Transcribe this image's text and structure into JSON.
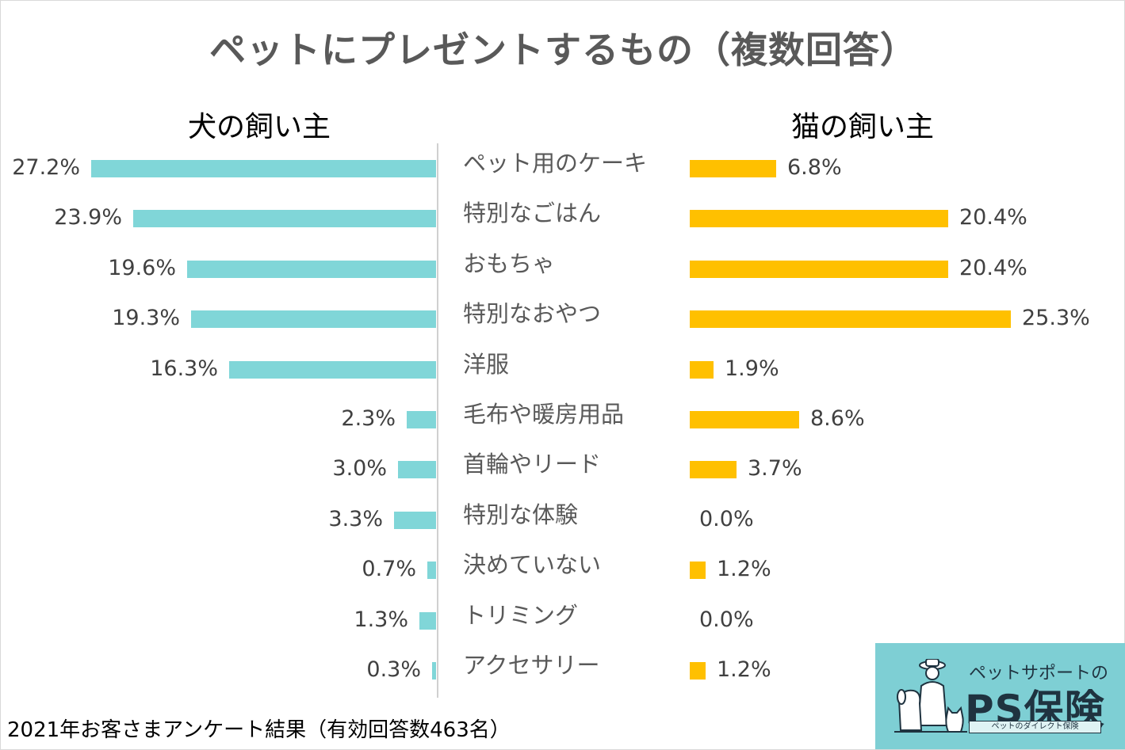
{
  "title": "ペットにプレゼントするもの（複数回答）",
  "footer": "2021年お客さまアンケート結果（有効回答数463名）",
  "logo": {
    "sub": "ペットサポートの",
    "brand": "PS保険",
    "tagline": "ペットのダイレクト保険",
    "icon": "pet-owner-illustration"
  },
  "colors": {
    "dog": "#80d6d8",
    "cat": "#ffc000",
    "logo_bg": "#7ecfd4"
  },
  "chart_data": {
    "type": "bar",
    "orientation": "horizontal-butterfly",
    "title": "ペットにプレゼントするもの（複数回答）",
    "categories": [
      "ペット用のケーキ",
      "特別なごはん",
      "おもちゃ",
      "特別なおやつ",
      "洋服",
      "毛布や暖房用品",
      "首輪やリード",
      "特別な体験",
      "決めていない",
      "トリミング",
      "アクセサリー"
    ],
    "series": [
      {
        "name": "犬の飼い主",
        "values": [
          27.2,
          23.9,
          19.6,
          19.3,
          16.3,
          2.3,
          3.0,
          3.3,
          0.7,
          1.3,
          0.3
        ]
      },
      {
        "name": "猫の飼い主",
        "values": [
          6.8,
          20.4,
          20.4,
          25.3,
          1.9,
          8.6,
          3.7,
          0.0,
          1.2,
          0.0,
          1.2
        ]
      }
    ],
    "labels": {
      "dog": [
        "27.2%",
        "23.9%",
        "19.6%",
        "19.3%",
        "16.3%",
        "2.3%",
        "3.0%",
        "3.3%",
        "0.7%",
        "1.3%",
        "0.3%"
      ],
      "cat": [
        "6.8%",
        "20.4%",
        "20.4%",
        "25.3%",
        "1.9%",
        "8.6%",
        "3.7%",
        "0.0%",
        "1.2%",
        "0.0%",
        "1.2%"
      ]
    },
    "unit": "%",
    "xlabel": "",
    "ylabel": ""
  }
}
